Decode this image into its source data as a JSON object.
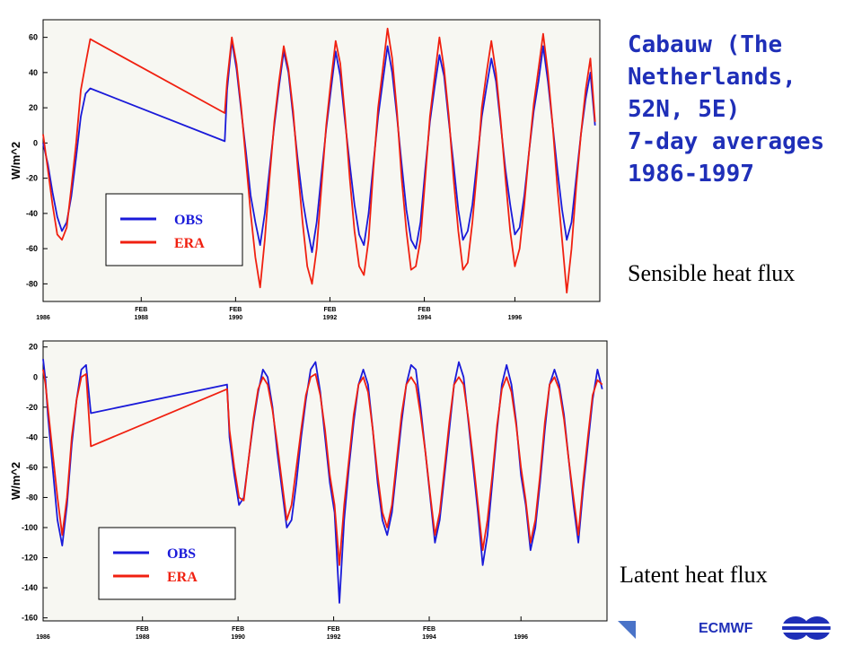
{
  "title_lines": "Cabauw (The\nNetherlands,\n52N, 5E)\n7-day averages\n1986-1997",
  "footer": {
    "org": "ECMWF"
  },
  "colors": {
    "obs": "#1a1ad9",
    "era": "#f02010",
    "title": "#1f2fb8",
    "plot_bg": "#f7f7f2"
  },
  "chart_data": [
    {
      "type": "line",
      "subtitle": "Sensible heat flux",
      "ylabel": "W/m^2",
      "ylim": [
        -90,
        70
      ],
      "yticks": [
        -80,
        -60,
        -40,
        -20,
        0,
        20,
        40,
        60
      ],
      "xlim": [
        1986.0,
        1997.8
      ],
      "xticks": [
        {
          "year": 1986,
          "month": "",
          "label": "1986"
        },
        {
          "year": 1988.08,
          "month": "FEB",
          "label": "1988"
        },
        {
          "year": 1990.08,
          "month": "FEB",
          "label": "1990"
        },
        {
          "year": 1992.08,
          "month": "FEB",
          "label": "1992"
        },
        {
          "year": 1994.08,
          "month": "FEB",
          "label": "1994"
        },
        {
          "year": 1996,
          "month": "",
          "label": "1996"
        }
      ],
      "legend": {
        "position": "lower-left",
        "entries": [
          "OBS",
          "ERA"
        ]
      },
      "gap": [
        1987.0,
        1989.85
      ],
      "series": [
        {
          "name": "OBS",
          "x": [
            1986.0,
            1986.1,
            1986.2,
            1986.3,
            1986.4,
            1986.5,
            1986.6,
            1986.7,
            1986.8,
            1986.9,
            1987.0,
            1989.85,
            1989.9,
            1990.0,
            1990.1,
            1990.2,
            1990.3,
            1990.4,
            1990.5,
            1990.6,
            1990.7,
            1990.8,
            1990.9,
            1991.0,
            1991.1,
            1991.2,
            1991.3,
            1991.4,
            1991.5,
            1991.6,
            1991.7,
            1991.8,
            1991.9,
            1992.0,
            1992.1,
            1992.2,
            1992.3,
            1992.4,
            1992.5,
            1992.6,
            1992.7,
            1992.8,
            1992.9,
            1993.0,
            1993.1,
            1993.2,
            1993.3,
            1993.4,
            1993.5,
            1993.6,
            1993.7,
            1993.8,
            1993.9,
            1994.0,
            1994.1,
            1994.2,
            1994.3,
            1994.4,
            1994.5,
            1994.6,
            1994.7,
            1994.8,
            1994.9,
            1995.0,
            1995.1,
            1995.2,
            1995.3,
            1995.4,
            1995.5,
            1995.6,
            1995.7,
            1995.8,
            1995.9,
            1996.0,
            1996.1,
            1996.2,
            1996.3,
            1996.4,
            1996.5,
            1996.6,
            1996.7,
            1996.8,
            1996.9,
            1997.0,
            1997.1,
            1997.2,
            1997.3,
            1997.4,
            1997.5,
            1997.6,
            1997.7
          ],
          "y": [
            0,
            -12,
            -28,
            -42,
            -50,
            -45,
            -30,
            -8,
            15,
            28,
            31,
            1,
            30,
            58,
            42,
            18,
            -5,
            -30,
            -45,
            -58,
            -40,
            -15,
            10,
            32,
            52,
            40,
            15,
            -10,
            -32,
            -48,
            -62,
            -45,
            -18,
            8,
            30,
            52,
            38,
            12,
            -12,
            -35,
            -52,
            -58,
            -40,
            -12,
            15,
            35,
            55,
            40,
            15,
            -12,
            -38,
            -55,
            -60,
            -45,
            -15,
            12,
            32,
            50,
            38,
            12,
            -12,
            -38,
            -55,
            -50,
            -35,
            -10,
            15,
            32,
            48,
            35,
            10,
            -15,
            -35,
            -52,
            -48,
            -30,
            -5,
            18,
            35,
            55,
            35,
            10,
            -15,
            -38,
            -55,
            -45,
            -20,
            5,
            25,
            40,
            10
          ]
        },
        {
          "name": "ERA",
          "x": [
            1986.0,
            1986.1,
            1986.2,
            1986.3,
            1986.4,
            1986.5,
            1986.6,
            1986.7,
            1986.8,
            1986.9,
            1987.0,
            1989.85,
            1989.9,
            1990.0,
            1990.1,
            1990.2,
            1990.3,
            1990.4,
            1990.5,
            1990.6,
            1990.7,
            1990.8,
            1990.9,
            1991.0,
            1991.1,
            1991.2,
            1991.3,
            1991.4,
            1991.5,
            1991.6,
            1991.7,
            1991.8,
            1991.9,
            1992.0,
            1992.1,
            1992.2,
            1992.3,
            1992.4,
            1992.5,
            1992.6,
            1992.7,
            1992.8,
            1992.9,
            1993.0,
            1993.1,
            1993.2,
            1993.3,
            1993.4,
            1993.5,
            1993.6,
            1993.7,
            1993.8,
            1993.9,
            1994.0,
            1994.1,
            1994.2,
            1994.3,
            1994.4,
            1994.5,
            1994.6,
            1994.7,
            1994.8,
            1994.9,
            1995.0,
            1995.1,
            1995.2,
            1995.3,
            1995.4,
            1995.5,
            1995.6,
            1995.7,
            1995.8,
            1995.9,
            1996.0,
            1996.1,
            1996.2,
            1996.3,
            1996.4,
            1996.5,
            1996.6,
            1996.7,
            1996.8,
            1996.9,
            1997.0,
            1997.1,
            1997.2,
            1997.3,
            1997.4,
            1997.5,
            1997.6,
            1997.7
          ],
          "y": [
            5,
            -15,
            -35,
            -52,
            -55,
            -48,
            -25,
            0,
            30,
            45,
            59,
            17,
            35,
            60,
            45,
            20,
            -10,
            -40,
            -65,
            -82,
            -55,
            -20,
            12,
            35,
            55,
            42,
            18,
            -15,
            -45,
            -70,
            -80,
            -60,
            -25,
            10,
            35,
            58,
            45,
            15,
            -20,
            -50,
            -70,
            -75,
            -55,
            -15,
            20,
            42,
            65,
            48,
            18,
            -20,
            -50,
            -72,
            -70,
            -55,
            -20,
            15,
            38,
            60,
            42,
            15,
            -20,
            -50,
            -72,
            -68,
            -45,
            -15,
            20,
            40,
            58,
            40,
            12,
            -20,
            -50,
            -70,
            -60,
            -35,
            -5,
            22,
            42,
            62,
            40,
            10,
            -25,
            -55,
            -85,
            -60,
            -25,
            5,
            30,
            48,
            12
          ]
        }
      ]
    },
    {
      "type": "line",
      "subtitle": "Latent heat flux",
      "ylabel": "W/m^2",
      "ylim": [
        -162,
        24
      ],
      "yticks": [
        -160,
        -140,
        -120,
        -100,
        -80,
        -60,
        -40,
        -20,
        0,
        20
      ],
      "xlim": [
        1986.0,
        1997.8
      ],
      "xticks": [
        {
          "year": 1986,
          "month": "",
          "label": "1986"
        },
        {
          "year": 1988.08,
          "month": "FEB",
          "label": "1988"
        },
        {
          "year": 1990.08,
          "month": "FEB",
          "label": "1990"
        },
        {
          "year": 1992.08,
          "month": "FEB",
          "label": "1992"
        },
        {
          "year": 1994.08,
          "month": "FEB",
          "label": "1994"
        },
        {
          "year": 1996,
          "month": "",
          "label": "1996"
        }
      ],
      "legend": {
        "position": "lower-left",
        "entries": [
          "OBS",
          "ERA"
        ]
      },
      "gap": [
        1987.0,
        1989.85
      ],
      "series": [
        {
          "name": "OBS",
          "x": [
            1986.0,
            1986.05,
            1986.1,
            1986.2,
            1986.3,
            1986.4,
            1986.5,
            1986.6,
            1986.7,
            1986.8,
            1986.9,
            1987.0,
            1989.85,
            1989.9,
            1990.0,
            1990.1,
            1990.2,
            1990.3,
            1990.4,
            1990.5,
            1990.6,
            1990.7,
            1990.8,
            1990.9,
            1991.0,
            1991.1,
            1991.2,
            1991.3,
            1991.4,
            1991.5,
            1991.6,
            1991.7,
            1991.8,
            1991.9,
            1992.0,
            1992.1,
            1992.2,
            1992.3,
            1992.4,
            1992.5,
            1992.6,
            1992.7,
            1992.8,
            1992.9,
            1993.0,
            1993.1,
            1993.2,
            1993.3,
            1993.4,
            1993.5,
            1993.6,
            1993.7,
            1993.8,
            1993.9,
            1994.0,
            1994.1,
            1994.2,
            1994.3,
            1994.4,
            1994.5,
            1994.6,
            1994.7,
            1994.8,
            1994.9,
            1995.0,
            1995.1,
            1995.2,
            1995.3,
            1995.4,
            1995.5,
            1995.6,
            1995.7,
            1995.8,
            1995.9,
            1996.0,
            1996.1,
            1996.2,
            1996.3,
            1996.4,
            1996.5,
            1996.6,
            1996.7,
            1996.8,
            1996.9,
            1997.0,
            1997.1,
            1997.2,
            1997.3,
            1997.4,
            1997.5,
            1997.6,
            1997.7
          ],
          "y": [
            12,
            -2,
            -25,
            -60,
            -95,
            -112,
            -85,
            -45,
            -15,
            5,
            8,
            -24,
            -5,
            -40,
            -65,
            -85,
            -80,
            -55,
            -30,
            -10,
            5,
            0,
            -20,
            -50,
            -75,
            -100,
            -95,
            -70,
            -40,
            -15,
            5,
            10,
            -10,
            -40,
            -70,
            -90,
            -150,
            -95,
            -60,
            -30,
            -5,
            5,
            -5,
            -35,
            -70,
            -95,
            -105,
            -90,
            -60,
            -30,
            -5,
            8,
            5,
            -20,
            -50,
            -80,
            -110,
            -95,
            -65,
            -35,
            -5,
            10,
            0,
            -30,
            -60,
            -90,
            -125,
            -105,
            -70,
            -35,
            -5,
            8,
            -5,
            -30,
            -65,
            -85,
            -115,
            -100,
            -70,
            -35,
            -5,
            5,
            -5,
            -25,
            -55,
            -85,
            -110,
            -75,
            -45,
            -15,
            5,
            -8
          ]
        },
        {
          "name": "ERA",
          "x": [
            1986.0,
            1986.05,
            1986.1,
            1986.2,
            1986.3,
            1986.4,
            1986.5,
            1986.6,
            1986.7,
            1986.8,
            1986.9,
            1987.0,
            1989.85,
            1989.9,
            1990.0,
            1990.1,
            1990.2,
            1990.3,
            1990.4,
            1990.5,
            1990.6,
            1990.7,
            1990.8,
            1990.9,
            1991.0,
            1991.1,
            1991.2,
            1991.3,
            1991.4,
            1991.5,
            1991.6,
            1991.7,
            1991.8,
            1991.9,
            1992.0,
            1992.1,
            1992.2,
            1992.3,
            1992.4,
            1992.5,
            1992.6,
            1992.7,
            1992.8,
            1992.9,
            1993.0,
            1993.1,
            1993.2,
            1993.3,
            1993.4,
            1993.5,
            1993.6,
            1993.7,
            1993.8,
            1993.9,
            1994.0,
            1994.1,
            1994.2,
            1994.3,
            1994.4,
            1994.5,
            1994.6,
            1994.7,
            1994.8,
            1994.9,
            1995.0,
            1995.1,
            1995.2,
            1995.3,
            1995.4,
            1995.5,
            1995.6,
            1995.7,
            1995.8,
            1995.9,
            1996.0,
            1996.1,
            1996.2,
            1996.3,
            1996.4,
            1996.5,
            1996.6,
            1996.7,
            1996.8,
            1996.9,
            1997.0,
            1997.1,
            1997.2,
            1997.3,
            1997.4,
            1997.5,
            1997.6,
            1997.7
          ],
          "y": [
            5,
            -5,
            -20,
            -50,
            -80,
            -105,
            -80,
            -40,
            -15,
            0,
            2,
            -46,
            -8,
            -35,
            -60,
            -80,
            -82,
            -55,
            -28,
            -8,
            0,
            -5,
            -22,
            -45,
            -70,
            -95,
            -85,
            -60,
            -35,
            -12,
            0,
            2,
            -12,
            -35,
            -65,
            -85,
            -125,
            -85,
            -55,
            -25,
            -5,
            0,
            -10,
            -35,
            -65,
            -90,
            -100,
            -85,
            -55,
            -25,
            -5,
            0,
            -5,
            -25,
            -50,
            -78,
            -105,
            -90,
            -60,
            -30,
            -5,
            0,
            -5,
            -28,
            -55,
            -85,
            -115,
            -95,
            -65,
            -32,
            -8,
            0,
            -10,
            -32,
            -60,
            -82,
            -110,
            -95,
            -65,
            -30,
            -5,
            0,
            -8,
            -28,
            -55,
            -80,
            -105,
            -70,
            -40,
            -12,
            -2,
            -5
          ]
        }
      ]
    }
  ]
}
